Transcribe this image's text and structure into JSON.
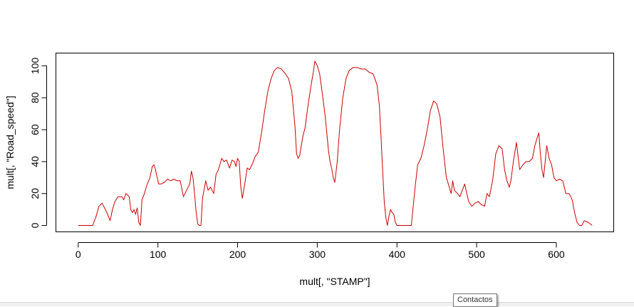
{
  "chart_data": {
    "type": "line",
    "xlabel": "mult[, \"STAMP\"]",
    "ylabel": "mult[, \"Road_speed\"]",
    "xlim": [
      -28,
      672
    ],
    "ylim": [
      -4,
      108
    ],
    "xticks": [
      0,
      100,
      200,
      300,
      400,
      500,
      600
    ],
    "yticks": [
      0,
      20,
      40,
      60,
      80,
      100
    ],
    "grid": false,
    "series": [
      {
        "color": "#cc0000",
        "x": [
          0,
          10,
          18,
          22,
          26,
          30,
          34,
          36,
          40,
          43,
          46,
          50,
          55,
          57,
          60,
          62,
          64,
          66,
          68,
          70,
          72,
          74,
          76,
          78,
          80,
          83,
          86,
          90,
          93,
          95,
          97,
          99,
          101,
          104,
          108,
          112,
          116,
          120,
          124,
          128,
          132,
          136,
          140,
          142,
          144,
          146,
          148,
          150,
          152,
          154,
          156,
          160,
          163,
          166,
          170,
          173,
          176,
          180,
          183,
          186,
          190,
          193,
          196,
          198,
          200,
          202,
          204,
          206,
          209,
          212,
          215,
          218,
          222,
          226,
          230,
          234,
          238,
          242,
          246,
          250,
          255,
          260,
          264,
          268,
          272,
          274,
          276,
          278,
          280,
          282,
          285,
          288,
          292,
          295,
          297,
          300,
          303,
          306,
          310,
          314,
          316,
          318,
          320,
          322,
          325,
          328,
          332,
          336,
          340,
          345,
          350,
          355,
          360,
          365,
          370,
          375,
          378,
          380,
          382,
          384,
          386,
          388,
          390,
          392,
          394,
          396,
          398,
          400,
          405,
          412,
          416,
          418,
          420,
          423,
          426,
          430,
          434,
          438,
          442,
          446,
          450,
          454,
          458,
          462,
          465,
          468,
          470,
          472,
          476,
          479,
          482,
          485,
          490,
          494,
          498,
          502,
          506,
          510,
          513,
          516,
          520,
          524,
          528,
          532,
          535,
          538,
          541,
          543,
          546,
          550,
          554,
          558,
          562,
          566,
          570,
          573,
          576,
          578,
          580,
          582,
          584,
          586,
          588,
          591,
          594,
          597,
          600,
          604,
          608,
          612,
          616,
          620,
          623,
          626,
          629,
          632,
          635,
          640,
          645
        ],
        "y": [
          0,
          0,
          0,
          5,
          12,
          14,
          10,
          8,
          3,
          10,
          15,
          18,
          18,
          16,
          20,
          19,
          18,
          10,
          8,
          10,
          7,
          11,
          2,
          0,
          16,
          20,
          25,
          30,
          37,
          38,
          35,
          30,
          26,
          26,
          27,
          29,
          28,
          29,
          28,
          28,
          18,
          22,
          26,
          34,
          30,
          20,
          8,
          1,
          0,
          0,
          17,
          28,
          22,
          24,
          20,
          32,
          35,
          42,
          40,
          41,
          36,
          41,
          40,
          37,
          42,
          40,
          24,
          17,
          26,
          36,
          35,
          38,
          43,
          46,
          58,
          72,
          84,
          92,
          97,
          99,
          98,
          95,
          92,
          84,
          62,
          45,
          42,
          44,
          50,
          56,
          62,
          74,
          87,
          96,
          103,
          100,
          95,
          84,
          68,
          47,
          40,
          36,
          30,
          27,
          40,
          60,
          80,
          92,
          97,
          99,
          99,
          98,
          98,
          96,
          95,
          88,
          75,
          55,
          35,
          15,
          5,
          0,
          6,
          10,
          8,
          7,
          2,
          0,
          0,
          0,
          0,
          0,
          10,
          25,
          38,
          42,
          50,
          60,
          72,
          78,
          76,
          68,
          48,
          30,
          25,
          20,
          28,
          22,
          20,
          18,
          22,
          26,
          15,
          12,
          14,
          15,
          13,
          12,
          20,
          18,
          28,
          45,
          50,
          48,
          35,
          28,
          24,
          28,
          40,
          52,
          35,
          38,
          40,
          40,
          42,
          50,
          55,
          58,
          45,
          35,
          30,
          40,
          50,
          42,
          38,
          30,
          28,
          29,
          28,
          20,
          20,
          16,
          8,
          2,
          0,
          0,
          3,
          2,
          0
        ]
      }
    ]
  },
  "tooltip": {
    "label": "Contactos"
  }
}
